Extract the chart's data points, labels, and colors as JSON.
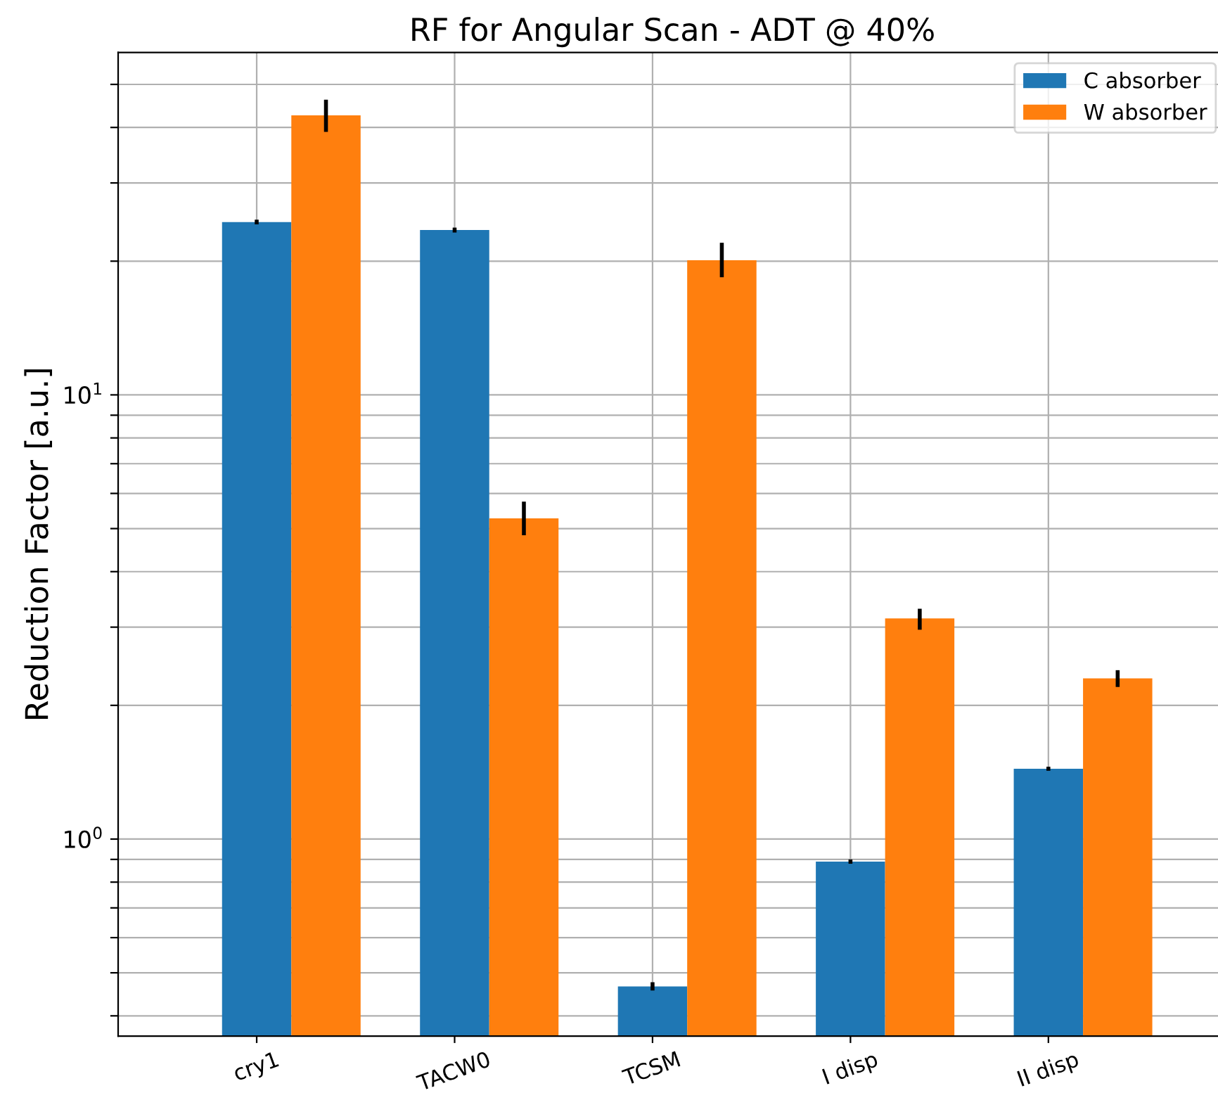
{
  "chart_data": {
    "type": "bar",
    "title": "RF for Angular Scan - ADT @ 40%",
    "ylabel": "Reduction Factor [a.u.]",
    "categories": [
      "cry1",
      "TACW0",
      "TCSM",
      "I disp",
      "II disp"
    ],
    "series": [
      {
        "name": "C absorber",
        "color": "#1f77b4",
        "values": [
          24.5,
          23.5,
          0.466,
          0.89,
          1.44
        ],
        "errors": [
          0.3,
          0.3,
          0.01,
          0.01,
          0.015
        ]
      },
      {
        "name": "W absorber",
        "color": "#ff7f0e",
        "values": [
          42.6,
          5.27,
          20.1,
          3.14,
          2.3
        ],
        "errors": [
          [
            39.1,
            46.2
          ],
          [
            4.83,
            5.75
          ],
          [
            18.4,
            22.0
          ],
          [
            2.96,
            3.3
          ],
          [
            2.2,
            2.4
          ]
        ]
      }
    ],
    "log": "y",
    "ylim": [
      0.36,
      59
    ],
    "yticks": [
      {
        "value": 0.4,
        "label": null
      },
      {
        "value": 0.5,
        "label": null
      },
      {
        "value": 0.6,
        "label": null
      },
      {
        "value": 0.7,
        "label": null
      },
      {
        "value": 0.8,
        "label": null
      },
      {
        "value": 0.9,
        "label": null
      },
      {
        "value": 1,
        "label": "10$^{0}$"
      },
      {
        "value": 2,
        "label": null
      },
      {
        "value": 3,
        "label": null
      },
      {
        "value": 4,
        "label": null
      },
      {
        "value": 5,
        "label": null
      },
      {
        "value": 6,
        "label": null
      },
      {
        "value": 7,
        "label": null
      },
      {
        "value": 8,
        "label": null
      },
      {
        "value": 9,
        "label": null
      },
      {
        "value": 10,
        "label": "10$^{1}$"
      },
      {
        "value": 20,
        "label": null
      },
      {
        "value": 30,
        "label": null
      },
      {
        "value": 40,
        "label": null
      },
      {
        "value": 50,
        "label": null
      }
    ],
    "grid": true,
    "legend": "top right"
  }
}
